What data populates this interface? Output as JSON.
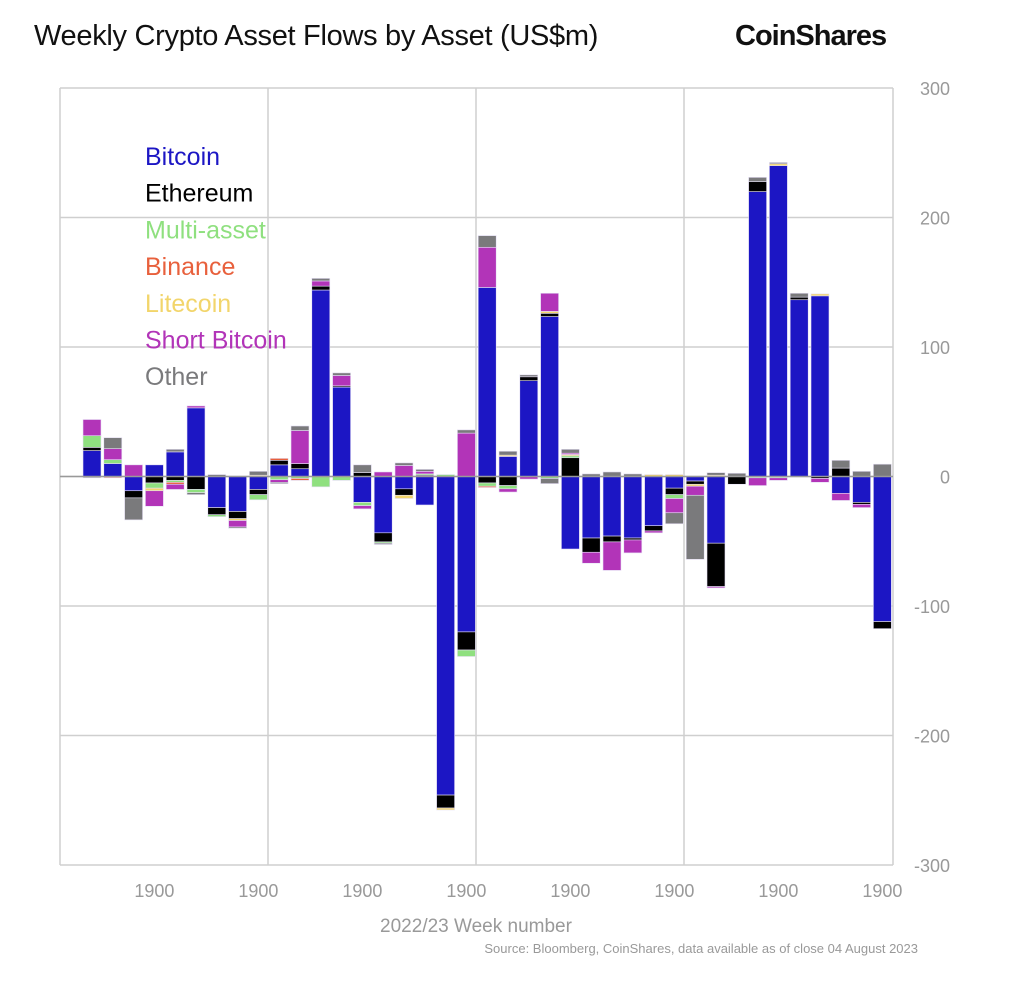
{
  "title": "Weekly Crypto Asset Flows by Asset (US$m)",
  "logo": "CoinShares",
  "source": "Source: Bloomberg, CoinShares, data available as of close 04 August 2023",
  "chart_data": {
    "type": "bar",
    "stacked": true,
    "title": "Weekly Crypto Asset Flows by Asset (US$m)",
    "xlabel": "2022/23 Week number",
    "ylabel": "",
    "ylim": [
      -300,
      300
    ],
    "yticks": [
      "300",
      "200",
      "100",
      "0",
      "-100",
      "-200",
      "-300"
    ],
    "xtick_labels": [
      "1900",
      "1900",
      "1900",
      "1900",
      "1900",
      "1900",
      "1900",
      "1900"
    ],
    "grid": true,
    "legend_position": "top-left",
    "weeks": 39,
    "series": [
      {
        "name": "Bitcoin",
        "color": "#1c16c4",
        "values": [
          20,
          10,
          -11,
          9,
          19,
          53,
          -24,
          -27,
          -10,
          9,
          6,
          144,
          69,
          -20,
          -43.5,
          -9.5,
          -22,
          -246,
          -120,
          146,
          15.5,
          74,
          123.5,
          -56,
          -47.5,
          -46,
          -47.5,
          -38,
          -9,
          -3.5,
          -51.5,
          0,
          220,
          240,
          136.5,
          139.5,
          -13,
          -20,
          -112
        ]
      },
      {
        "name": "Ethereum",
        "color": "#000000",
        "values": [
          2.5,
          0,
          -5.5,
          -5,
          -3,
          -10,
          -5.5,
          -5.5,
          -4,
          3.5,
          4,
          3,
          1,
          3,
          -7,
          -5,
          1,
          -10,
          -14,
          -5,
          -7,
          3,
          2.5,
          14.5,
          -11,
          -4.5,
          -1.5,
          -4,
          -5,
          -2.5,
          -33.5,
          -6,
          7.7,
          0,
          2,
          -1.5,
          6.5,
          -1.5,
          -5.5
        ]
      },
      {
        "name": "Multi-asset",
        "color": "#8fe07f",
        "values": [
          9,
          3,
          0,
          -4,
          -1.5,
          -2.5,
          -1.5,
          0,
          -4,
          -2.5,
          -1.5,
          -8,
          -3,
          -2.5,
          -1,
          0,
          1,
          1.5,
          -5,
          -2.5,
          -2.5,
          0,
          -1.5,
          1.5,
          0,
          0,
          0,
          0,
          -3,
          0,
          0,
          0,
          -1,
          -1,
          0,
          0,
          0,
          0,
          0
        ]
      },
      {
        "name": "Binance",
        "color": "#e8603c",
        "values": [
          0,
          -1,
          0,
          0,
          -1.5,
          0,
          0,
          0,
          0,
          1.5,
          -1.5,
          0,
          0,
          0,
          0,
          0,
          0,
          0,
          0,
          -1,
          0,
          0,
          0,
          0,
          0,
          0,
          0,
          0,
          0,
          0,
          0,
          0,
          0,
          0,
          0,
          0,
          0,
          0,
          0
        ]
      },
      {
        "name": "Litecoin",
        "color": "#f2d56b",
        "values": [
          0,
          0,
          0,
          -2,
          0,
          0,
          0,
          -1.5,
          1,
          0,
          0,
          0,
          0,
          0,
          0,
          -2.5,
          0,
          -1.5,
          0,
          0,
          1,
          0,
          1.5,
          1,
          0,
          0,
          0,
          1.5,
          1.5,
          -1.5,
          1,
          0,
          0,
          1.5,
          0,
          1.5,
          0,
          0,
          0
        ]
      },
      {
        "name": "Short Bitcoin",
        "color": "#b234b8",
        "values": [
          12.5,
          8.5,
          9,
          -12,
          -4,
          1.5,
          0,
          -5,
          0,
          -2,
          25.5,
          4,
          8,
          -2.5,
          3.5,
          8.5,
          2,
          0,
          33.5,
          31,
          -2.5,
          -2,
          14,
          1,
          -8.5,
          -22,
          -10,
          -1.5,
          -11,
          -7,
          -1,
          0,
          -6,
          -2,
          0,
          -3,
          -5.5,
          -2.5,
          0
        ]
      },
      {
        "name": "Other",
        "color": "#7a7a7c",
        "values": [
          -1,
          8.5,
          -17,
          0,
          2,
          -1.5,
          1.5,
          -1,
          3,
          -1,
          3.5,
          2,
          2,
          6,
          -1,
          2,
          1.5,
          0,
          2.5,
          9,
          3,
          1.5,
          -4,
          3,
          2,
          3.5,
          2,
          0,
          -8.5,
          -49.5,
          2,
          2.5,
          3.3,
          1,
          3,
          0,
          6,
          4,
          9.5
        ]
      }
    ]
  }
}
